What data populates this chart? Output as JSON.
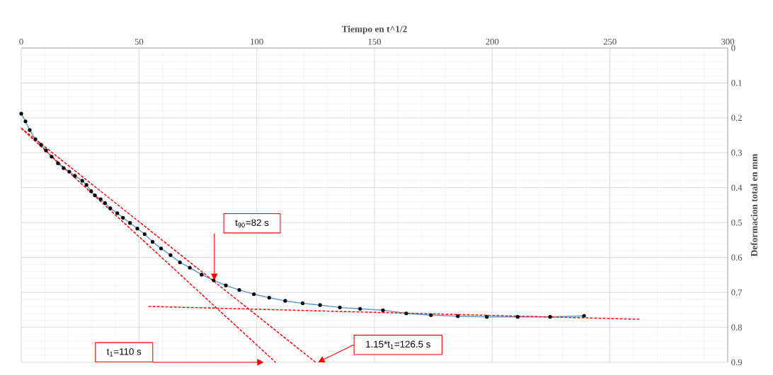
{
  "chart_data": {
    "type": "line",
    "xlabel": "Tiempo en t^1/2",
    "ylabel": "Deformacion total en mm",
    "xlim": [
      0,
      300
    ],
    "xticks": [
      0,
      50,
      100,
      150,
      200,
      250,
      300
    ],
    "ylim": [
      0.9,
      0
    ],
    "yticks": [
      0,
      0.1,
      0.2,
      0.3,
      0.4,
      0.5,
      0.6,
      0.7,
      0.8,
      0.9
    ],
    "grid": true,
    "series": [
      {
        "color": "#5b9bd5",
        "marker": "circle",
        "line_style": "solid",
        "x": [
          0,
          1.8,
          3.6,
          6.0,
          8.4,
          10.5,
          12.9,
          15.6,
          18.0,
          20.4,
          22.8,
          25.9,
          27.7,
          29.7,
          31.3,
          33.7,
          35.6,
          37.8,
          40.8,
          43.2,
          46.2,
          49.3,
          52.4,
          55.8,
          59.4,
          63.4,
          67.4,
          71.6,
          76.6,
          81.7,
          86.9,
          92.6,
          98.8,
          105.3,
          112.1,
          119.5,
          126.9,
          135.3,
          143.9,
          153.6,
          163.5,
          174.0,
          185.4,
          197.7,
          210.8,
          224.6,
          239.0
        ],
        "values": [
          0.188,
          0.21,
          0.235,
          0.261,
          0.277,
          0.293,
          0.311,
          0.33,
          0.344,
          0.354,
          0.366,
          0.38,
          0.392,
          0.41,
          0.422,
          0.433,
          0.444,
          0.459,
          0.473,
          0.486,
          0.501,
          0.517,
          0.533,
          0.555,
          0.574,
          0.593,
          0.614,
          0.629,
          0.649,
          0.665,
          0.68,
          0.693,
          0.705,
          0.715,
          0.724,
          0.731,
          0.736,
          0.743,
          0.747,
          0.751,
          0.76,
          0.765,
          0.768,
          0.77,
          0.77,
          0.77,
          0.767
        ]
      },
      {
        "color": "#ff0000",
        "marker": "none",
        "line_style": "dashed",
        "x": [
          0,
          125
        ],
        "values": [
          0.229,
          0.9
        ]
      },
      {
        "color": "#ff0000",
        "marker": "none",
        "line_style": "dashed",
        "x": [
          0,
          108
        ],
        "values": [
          0.23,
          0.9
        ]
      },
      {
        "color": "#ff0000",
        "marker": "none",
        "line_style": "dashed",
        "x": [
          54,
          263
        ],
        "values": [
          0.74,
          0.777
        ]
      }
    ],
    "annotations": [
      "t$_{90}$=82 s",
      "t$_{1}$=110 s",
      "1.15*t$_{1}$=126.5 s"
    ]
  }
}
